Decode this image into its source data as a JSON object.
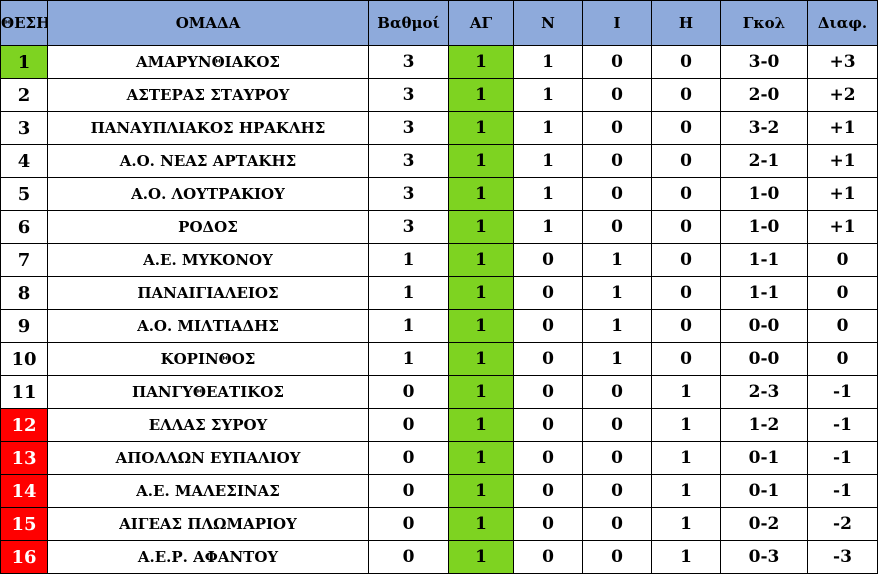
{
  "headers": [
    "ΘΕΣΗ",
    "ΟΜΑΔΑ",
    "Βαθμοί",
    "ΑΓ",
    "Ν",
    "Ι",
    "Η",
    "Γκολ",
    "Διαφ."
  ],
  "colors": {
    "header_bg": "#8eaadb",
    "first_place": "#7ed321",
    "played_column": "#7ed321",
    "relegation": "#ff0000"
  },
  "rows": [
    {
      "pos": "1",
      "team": "ΑΜΑΡΥΝΘΙΑΚΟΣ",
      "pts": "3",
      "ag": "1",
      "n": "1",
      "i": "0",
      "h": "0",
      "goals": "3-0",
      "diff": "+3",
      "zone": "green"
    },
    {
      "pos": "2",
      "team": "ΑΣΤΕΡΑΣ ΣΤΑΥΡΟΥ",
      "pts": "3",
      "ag": "1",
      "n": "1",
      "i": "0",
      "h": "0",
      "goals": "2-0",
      "diff": "+2",
      "zone": "plain"
    },
    {
      "pos": "3",
      "team": "ΠΑΝΑΥΠΛΙΑΚΟΣ ΗΡΑΚΛΗΣ",
      "pts": "3",
      "ag": "1",
      "n": "1",
      "i": "0",
      "h": "0",
      "goals": "3-2",
      "diff": "+1",
      "zone": "plain"
    },
    {
      "pos": "4",
      "team": "Α.Ο. ΝΕΑΣ ΑΡΤΑΚΗΣ",
      "pts": "3",
      "ag": "1",
      "n": "1",
      "i": "0",
      "h": "0",
      "goals": "2-1",
      "diff": "+1",
      "zone": "plain"
    },
    {
      "pos": "5",
      "team": "Α.Ο. ΛΟΥΤΡΑΚΙΟΥ",
      "pts": "3",
      "ag": "1",
      "n": "1",
      "i": "0",
      "h": "0",
      "goals": "1-0",
      "diff": "+1",
      "zone": "plain"
    },
    {
      "pos": "6",
      "team": "ΡΟΔΟΣ",
      "pts": "3",
      "ag": "1",
      "n": "1",
      "i": "0",
      "h": "0",
      "goals": "1-0",
      "diff": "+1",
      "zone": "plain"
    },
    {
      "pos": "7",
      "team": "Α.Ε. ΜΥΚΟΝΟΥ",
      "pts": "1",
      "ag": "1",
      "n": "0",
      "i": "1",
      "h": "0",
      "goals": "1-1",
      "diff": "0",
      "zone": "plain"
    },
    {
      "pos": "8",
      "team": "ΠΑΝΑΙΓΙΑΛΕΙΟΣ",
      "pts": "1",
      "ag": "1",
      "n": "0",
      "i": "1",
      "h": "0",
      "goals": "1-1",
      "diff": "0",
      "zone": "plain"
    },
    {
      "pos": "9",
      "team": "Α.Ο. ΜΙΛΤΙΑΔΗΣ",
      "pts": "1",
      "ag": "1",
      "n": "0",
      "i": "1",
      "h": "0",
      "goals": "0-0",
      "diff": "0",
      "zone": "plain"
    },
    {
      "pos": "10",
      "team": "ΚΟΡΙΝΘΟΣ",
      "pts": "1",
      "ag": "1",
      "n": "0",
      "i": "1",
      "h": "0",
      "goals": "0-0",
      "diff": "0",
      "zone": "plain"
    },
    {
      "pos": "11",
      "team": "ΠΑΝΓΥΘΕΑΤΙΚΟΣ",
      "pts": "0",
      "ag": "1",
      "n": "0",
      "i": "0",
      "h": "1",
      "goals": "2-3",
      "diff": "-1",
      "zone": "plain"
    },
    {
      "pos": "12",
      "team": "ΕΛΛΑΣ ΣΥΡΟΥ",
      "pts": "0",
      "ag": "1",
      "n": "0",
      "i": "0",
      "h": "1",
      "goals": "1-2",
      "diff": "-1",
      "zone": "red"
    },
    {
      "pos": "13",
      "team": "ΑΠΟΛΛΩΝ ΕΥΠΑΛΙΟΥ",
      "pts": "0",
      "ag": "1",
      "n": "0",
      "i": "0",
      "h": "1",
      "goals": "0-1",
      "diff": "-1",
      "zone": "red"
    },
    {
      "pos": "14",
      "team": "Α.Ε. ΜΑΛΕΣΙΝΑΣ",
      "pts": "0",
      "ag": "1",
      "n": "0",
      "i": "0",
      "h": "1",
      "goals": "0-1",
      "diff": "-1",
      "zone": "red"
    },
    {
      "pos": "15",
      "team": "ΑΙΓΕΑΣ ΠΛΩΜΑΡΙΟΥ",
      "pts": "0",
      "ag": "1",
      "n": "0",
      "i": "0",
      "h": "1",
      "goals": "0-2",
      "diff": "-2",
      "zone": "red"
    },
    {
      "pos": "16",
      "team": "Α.Ε.Ρ. ΑΦΑΝΤΟΥ",
      "pts": "0",
      "ag": "1",
      "n": "0",
      "i": "0",
      "h": "1",
      "goals": "0-3",
      "diff": "-3",
      "zone": "red"
    }
  ]
}
